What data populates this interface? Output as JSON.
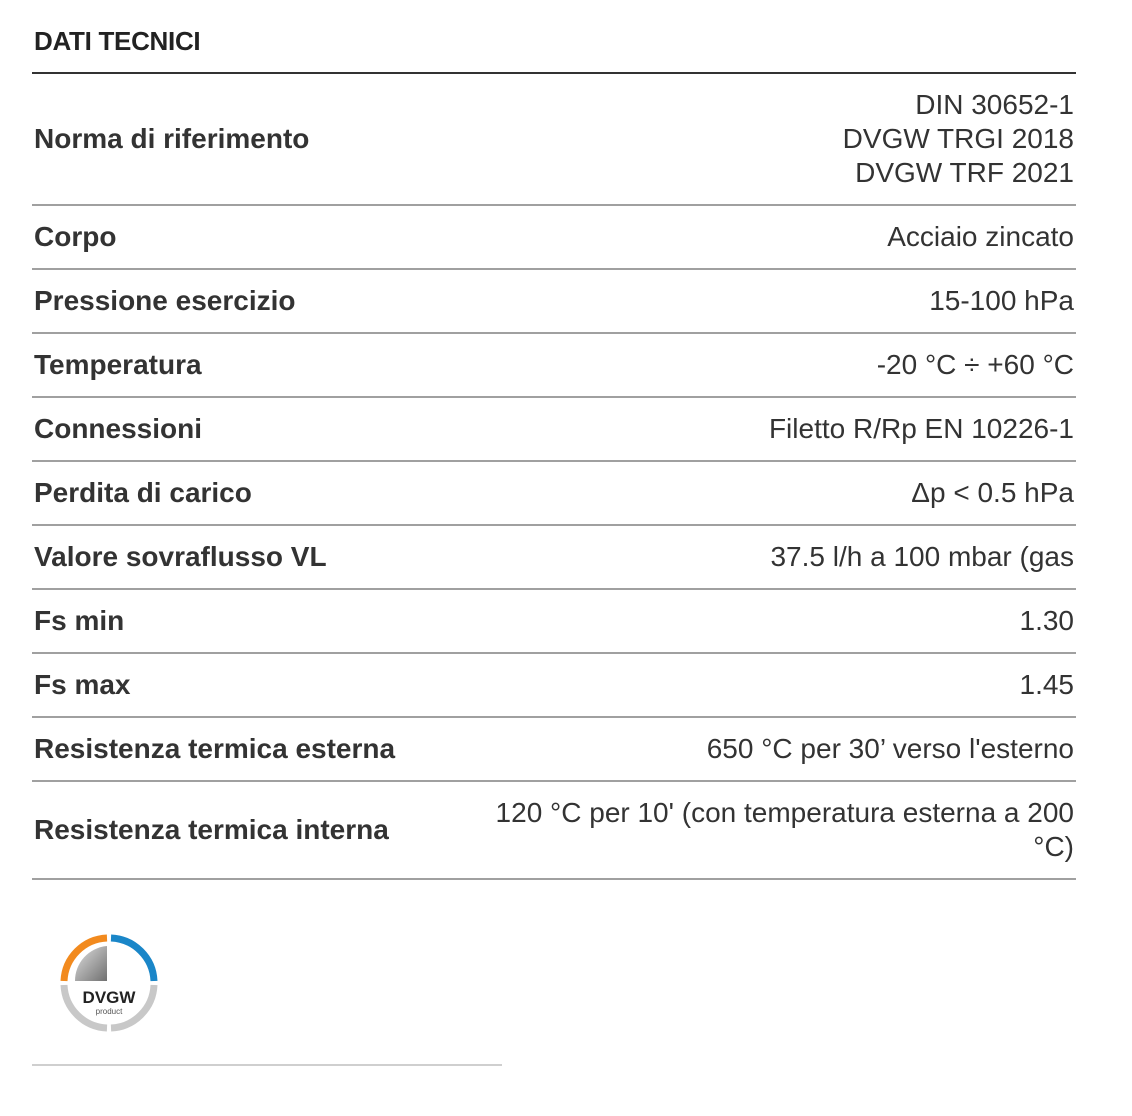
{
  "title": "DATI TECNICI",
  "rows": [
    {
      "label": "Norma di riferimento",
      "value": [
        "DIN 30652-1",
        "DVGW TRGI 2018",
        "DVGW TRF 2021"
      ]
    },
    {
      "label": "Corpo",
      "value": [
        "Acciaio zincato"
      ]
    },
    {
      "label": "Pressione esercizio",
      "value": [
        "15-100 hPa"
      ]
    },
    {
      "label": "Temperatura",
      "value": [
        "-20 °C ÷ +60 °C"
      ]
    },
    {
      "label": "Connessioni",
      "value": [
        "Filetto R/Rp EN 10226-1"
      ]
    },
    {
      "label": "Perdita di carico",
      "value": [
        "Δp < 0.5 hPa"
      ]
    },
    {
      "label": "Valore sovraflusso VL",
      "value": [
        "37.5 l/h a 100 mbar (gas"
      ]
    },
    {
      "label": "Fs min",
      "value": [
        "1.30"
      ]
    },
    {
      "label": "Fs max",
      "value": [
        "1.45"
      ]
    },
    {
      "label": "Resistenza termica esterna",
      "value": [
        "650 °C per 30’ verso l'esterno"
      ]
    },
    {
      "label": "Resistenza termica interna",
      "value": [
        "120 °C per 10' (con temperatura esterna a 200 °C)"
      ]
    }
  ],
  "logo": {
    "text": "DVGW",
    "subtext": "product",
    "colors": {
      "orange": "#f28a1e",
      "blue": "#1a86c8",
      "gray": "#c8c8c8"
    }
  }
}
